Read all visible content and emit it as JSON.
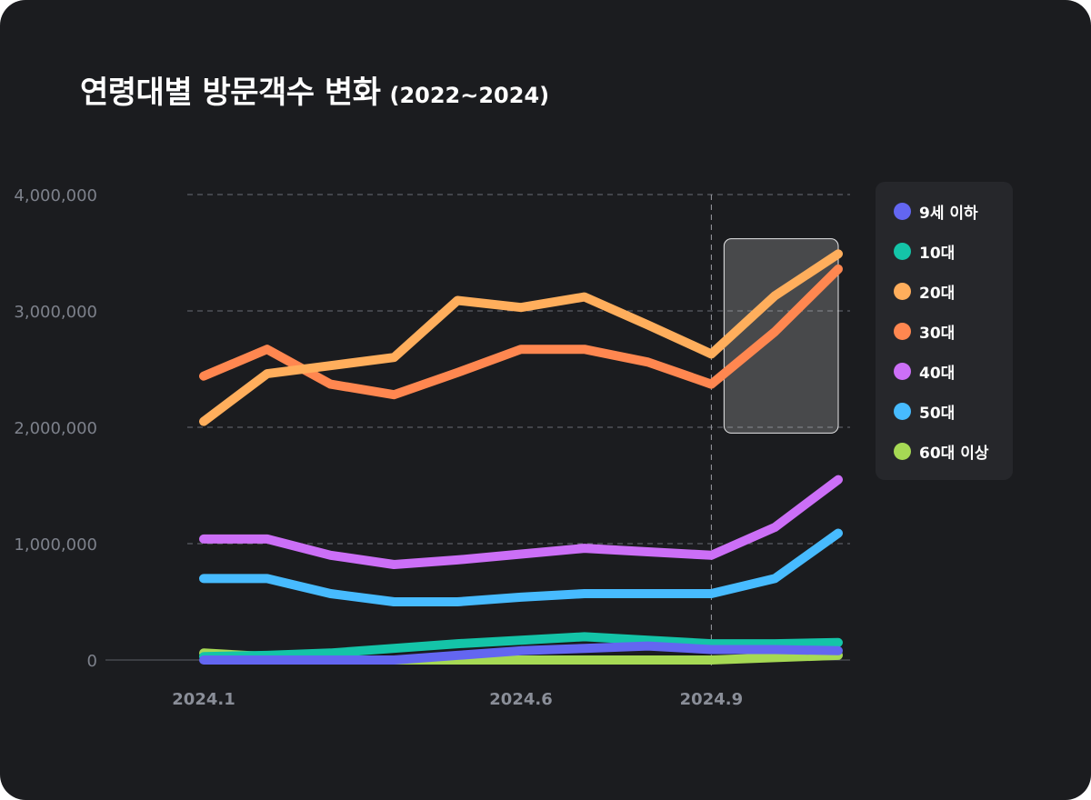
{
  "title": {
    "main": "연령대별 방문객수 변화",
    "sub": "(2022~2024)"
  },
  "chart_data": {
    "type": "line",
    "title": "연령대별 방문객수 변화 (2022~2024)",
    "xlabel": "",
    "ylabel": "",
    "x": [
      1,
      2,
      3,
      4,
      5,
      6,
      7,
      8,
      9,
      10,
      11
    ],
    "x_tick_labels": [
      {
        "x": 1,
        "label": "2024.1"
      },
      {
        "x": 6,
        "label": "2024.6"
      },
      {
        "x": 9,
        "label": "2024.9"
      }
    ],
    "y_ticks": [
      0,
      1000000,
      2000000,
      3000000,
      4000000
    ],
    "y_tick_labels": [
      "0",
      "1,000,000",
      "2,000,000",
      "3,000,000",
      "4,000,000"
    ],
    "ylim": [
      0,
      4000000
    ],
    "grid": "horizontal dashed",
    "reference_line_x": 9,
    "highlight": {
      "x_range": [
        9.2,
        11
      ],
      "y_range": [
        1950000,
        3620000
      ]
    },
    "legend_position": "right",
    "series": [
      {
        "name": "9세 이하",
        "color": "#6366f1",
        "values": [
          0,
          0,
          0,
          0,
          40000,
          80000,
          100000,
          120000,
          90000,
          90000,
          80000
        ]
      },
      {
        "name": "10대",
        "color": "#14c4a8",
        "values": [
          30000,
          40000,
          60000,
          100000,
          140000,
          170000,
          200000,
          170000,
          140000,
          140000,
          150000
        ]
      },
      {
        "name": "20대",
        "color": "#ffae5c",
        "values": [
          2050000,
          2460000,
          2530000,
          2600000,
          3090000,
          3030000,
          3120000,
          2880000,
          2630000,
          3130000,
          3490000
        ]
      },
      {
        "name": "30대",
        "color": "#ff8750",
        "values": [
          2440000,
          2670000,
          2370000,
          2280000,
          2470000,
          2670000,
          2670000,
          2560000,
          2370000,
          2820000,
          3360000
        ]
      },
      {
        "name": "40대",
        "color": "#cc6ff7",
        "values": [
          1040000,
          1040000,
          900000,
          820000,
          860000,
          910000,
          960000,
          930000,
          900000,
          1140000,
          1550000
        ]
      },
      {
        "name": "50대",
        "color": "#47bbff",
        "values": [
          700000,
          700000,
          570000,
          500000,
          500000,
          540000,
          570000,
          570000,
          570000,
          700000,
          1090000
        ]
      },
      {
        "name": "60대 이상",
        "color": "#a6d954",
        "values": [
          60000,
          30000,
          0,
          0,
          0,
          0,
          0,
          0,
          0,
          20000,
          40000
        ]
      }
    ]
  }
}
